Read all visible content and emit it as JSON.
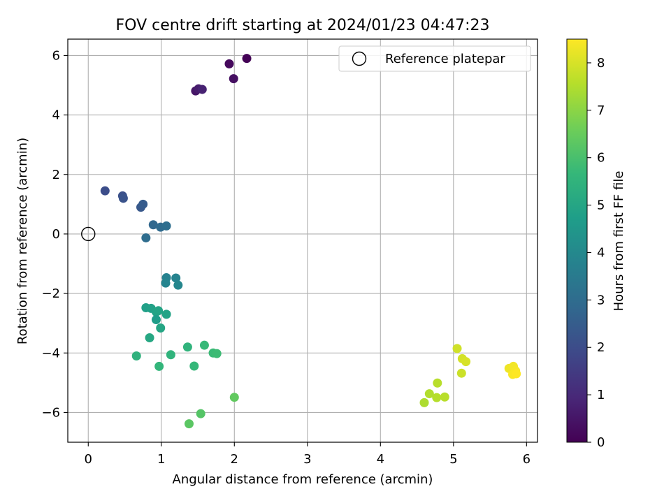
{
  "chart_data": {
    "type": "scatter",
    "title": "FOV centre drift starting at 2024/01/23 04:47:23",
    "xlabel": "Angular distance from reference (arcmin)",
    "ylabel": "Rotation from reference (arcmin)",
    "xlim": [
      -0.28,
      6.15
    ],
    "ylim": [
      -7.0,
      6.55
    ],
    "xticks": [
      0,
      1,
      2,
      3,
      4,
      5,
      6
    ],
    "yticks": [
      -6,
      -4,
      -2,
      0,
      2,
      4,
      6
    ],
    "xtick_labels": [
      "0",
      "1",
      "2",
      "3",
      "4",
      "5",
      "6"
    ],
    "ytick_labels": [
      "−6",
      "−4",
      "−2",
      "0",
      "2",
      "4",
      "6"
    ],
    "grid": true,
    "legend": {
      "placement": "top-right",
      "entries": [
        "Reference platepar"
      ]
    },
    "reference": {
      "label": "Reference platepar",
      "x": 0,
      "y": 0
    },
    "colorbar": {
      "label": "Hours from first FF file",
      "min": 0,
      "max": 8.5,
      "ticks": [
        0,
        1,
        2,
        3,
        4,
        5,
        6,
        7,
        8
      ],
      "tick_labels": [
        "0",
        "1",
        "2",
        "3",
        "4",
        "5",
        "6",
        "7",
        "8"
      ],
      "colormap": [
        "#440154",
        "#482878",
        "#3e4989",
        "#31688e",
        "#26828e",
        "#1f9e89",
        "#35b779",
        "#6ece58",
        "#b5de2b",
        "#fde725"
      ]
    },
    "points": [
      {
        "x": 2.17,
        "y": 5.9,
        "hours": 0.05
      },
      {
        "x": 1.93,
        "y": 5.72,
        "hours": 0.2
      },
      {
        "x": 1.99,
        "y": 5.22,
        "hours": 0.35
      },
      {
        "x": 1.47,
        "y": 4.81,
        "hours": 0.5
      },
      {
        "x": 1.51,
        "y": 4.88,
        "hours": 0.65
      },
      {
        "x": 1.56,
        "y": 4.86,
        "hours": 0.8
      },
      {
        "x": 0.23,
        "y": 1.45,
        "hours": 2.0
      },
      {
        "x": 0.47,
        "y": 1.28,
        "hours": 2.1
      },
      {
        "x": 0.48,
        "y": 1.2,
        "hours": 2.2
      },
      {
        "x": 0.72,
        "y": 0.9,
        "hours": 2.35
      },
      {
        "x": 0.75,
        "y": 1.0,
        "hours": 2.45
      },
      {
        "x": 0.89,
        "y": 0.31,
        "hours": 2.85
      },
      {
        "x": 0.99,
        "y": 0.23,
        "hours": 2.95
      },
      {
        "x": 1.07,
        "y": 0.27,
        "hours": 3.05
      },
      {
        "x": 0.79,
        "y": -0.13,
        "hours": 3.0
      },
      {
        "x": 1.07,
        "y": -1.47,
        "hours": 3.75
      },
      {
        "x": 1.06,
        "y": -1.65,
        "hours": 3.85
      },
      {
        "x": 1.2,
        "y": -1.48,
        "hours": 3.8
      },
      {
        "x": 1.23,
        "y": -1.72,
        "hours": 3.9
      },
      {
        "x": 0.79,
        "y": -2.48,
        "hours": 4.8
      },
      {
        "x": 0.86,
        "y": -2.5,
        "hours": 4.85
      },
      {
        "x": 0.93,
        "y": -2.62,
        "hours": 4.9
      },
      {
        "x": 0.96,
        "y": -2.58,
        "hours": 4.95
      },
      {
        "x": 1.07,
        "y": -2.7,
        "hours": 4.9
      },
      {
        "x": 0.93,
        "y": -2.88,
        "hours": 4.7
      },
      {
        "x": 0.99,
        "y": -3.16,
        "hours": 5.0
      },
      {
        "x": 0.84,
        "y": -3.49,
        "hours": 5.05
      },
      {
        "x": 1.36,
        "y": -3.8,
        "hours": 5.5
      },
      {
        "x": 1.59,
        "y": -3.74,
        "hours": 5.7
      },
      {
        "x": 1.71,
        "y": -4.0,
        "hours": 5.75
      },
      {
        "x": 1.76,
        "y": -4.02,
        "hours": 5.8
      },
      {
        "x": 0.66,
        "y": -4.1,
        "hours": 5.45
      },
      {
        "x": 1.13,
        "y": -4.06,
        "hours": 5.5
      },
      {
        "x": 0.97,
        "y": -4.45,
        "hours": 5.6
      },
      {
        "x": 1.45,
        "y": -4.44,
        "hours": 5.65
      },
      {
        "x": 2.0,
        "y": -5.49,
        "hours": 6.4
      },
      {
        "x": 1.54,
        "y": -6.04,
        "hours": 6.2
      },
      {
        "x": 1.38,
        "y": -6.38,
        "hours": 6.3
      },
      {
        "x": 5.05,
        "y": -3.85,
        "hours": 7.9
      },
      {
        "x": 5.12,
        "y": -4.19,
        "hours": 7.95
      },
      {
        "x": 5.17,
        "y": -4.29,
        "hours": 8.0
      },
      {
        "x": 5.11,
        "y": -4.68,
        "hours": 7.85
      },
      {
        "x": 4.78,
        "y": -5.01,
        "hours": 7.6
      },
      {
        "x": 4.67,
        "y": -5.37,
        "hours": 7.5
      },
      {
        "x": 4.77,
        "y": -5.5,
        "hours": 7.55
      },
      {
        "x": 4.88,
        "y": -5.48,
        "hours": 7.6
      },
      {
        "x": 4.6,
        "y": -5.67,
        "hours": 7.45
      },
      {
        "x": 5.76,
        "y": -4.52,
        "hours": 8.3
      },
      {
        "x": 5.82,
        "y": -4.45,
        "hours": 8.35
      },
      {
        "x": 5.85,
        "y": -4.6,
        "hours": 8.4
      },
      {
        "x": 5.81,
        "y": -4.72,
        "hours": 8.45
      },
      {
        "x": 5.86,
        "y": -4.7,
        "hours": 8.5
      }
    ]
  }
}
